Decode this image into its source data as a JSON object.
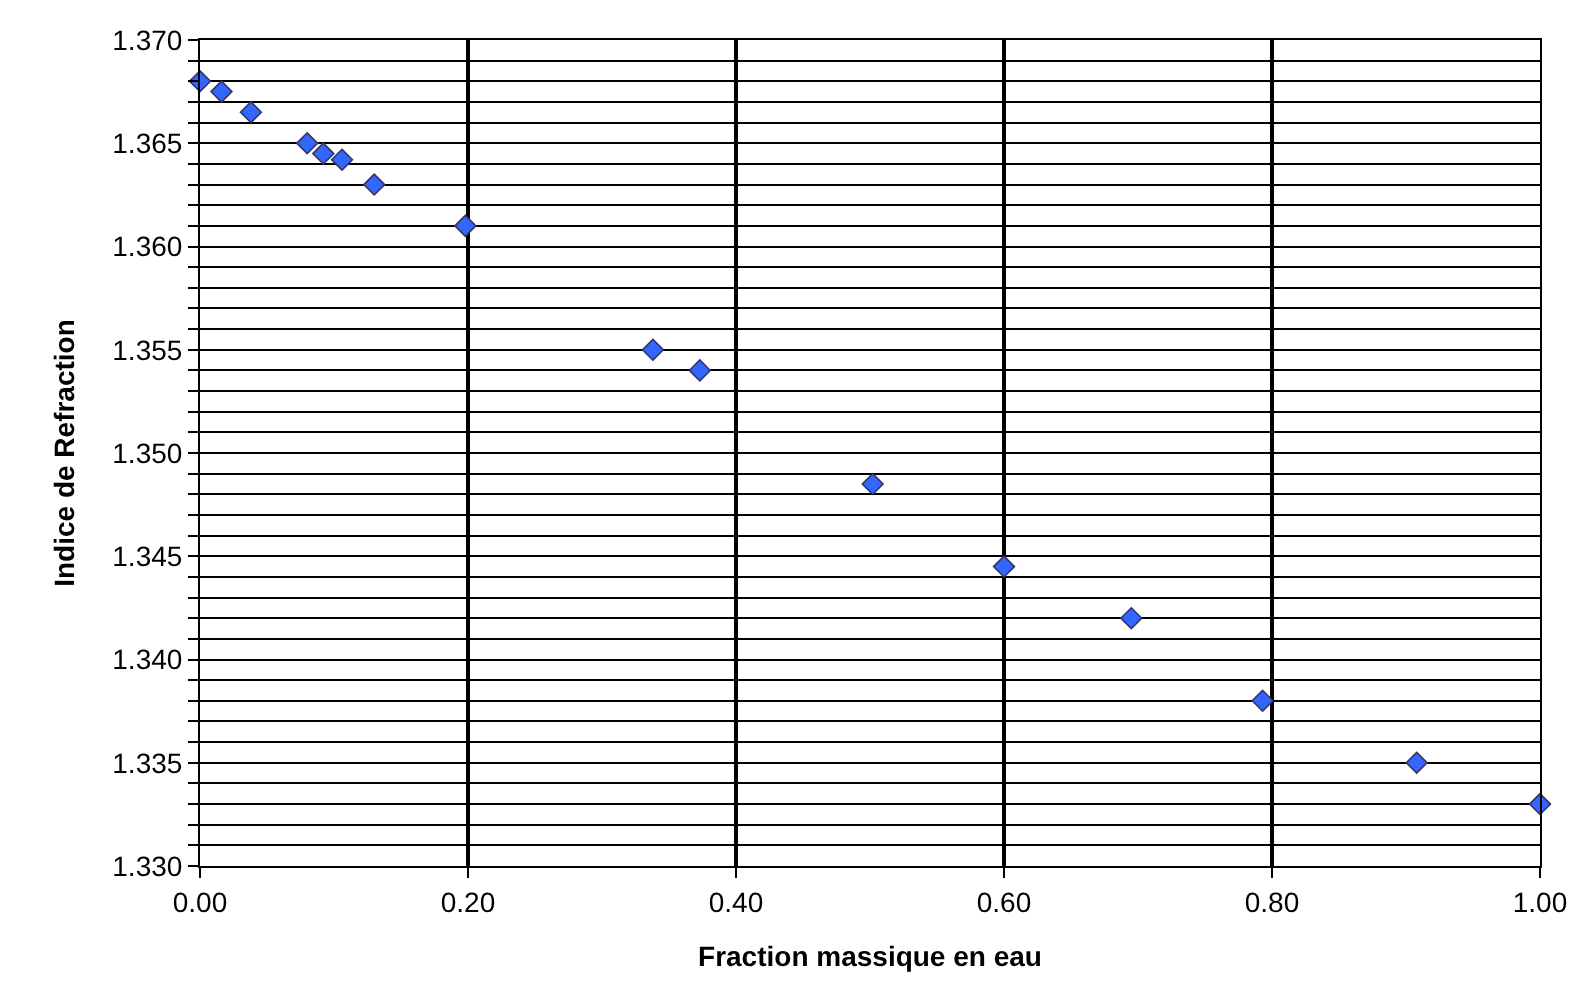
{
  "chart_data": {
    "type": "scatter",
    "xlabel": "Fraction massique en eau",
    "ylabel": "Indice de Refraction",
    "x": [
      0,
      0.016,
      0.038,
      0.08,
      0.092,
      0.106,
      0.13,
      0.198,
      0.338,
      0.373,
      0.502,
      0.6,
      0.695,
      0.793,
      0.908,
      1.0
    ],
    "series": [
      {
        "color": "#3366ff",
        "values": [
          1.368,
          1.3675,
          1.3665,
          1.365,
          1.3645,
          1.3642,
          1.363,
          1.361,
          1.355,
          1.354,
          1.3485,
          1.3445,
          1.342,
          1.338,
          1.335,
          1.333
        ]
      }
    ],
    "marker": "diamond",
    "grid": true,
    "xlim": [
      0,
      1
    ],
    "ylim": [
      1.33,
      1.37
    ],
    "xticks": [
      {
        "value": 0,
        "label": "0.00"
      },
      {
        "value": 0.2,
        "label": "0.20"
      },
      {
        "value": 0.4,
        "label": "0.40"
      },
      {
        "value": 0.6,
        "label": "0.60"
      },
      {
        "value": 0.8,
        "label": "0.80"
      },
      {
        "value": 1,
        "label": "1.00"
      }
    ],
    "yticks": [
      {
        "value": 1.33,
        "label": "1.330"
      },
      {
        "value": 1.331,
        "label": null
      },
      {
        "value": 1.332,
        "label": null
      },
      {
        "value": 1.333,
        "label": null
      },
      {
        "value": 1.334,
        "label": null
      },
      {
        "value": 1.335,
        "label": "1.335"
      },
      {
        "value": 1.336,
        "label": null
      },
      {
        "value": 1.337,
        "label": null
      },
      {
        "value": 1.338,
        "label": null
      },
      {
        "value": 1.339,
        "label": null
      },
      {
        "value": 1.34,
        "label": "1.340"
      },
      {
        "value": 1.341,
        "label": null
      },
      {
        "value": 1.342,
        "label": null
      },
      {
        "value": 1.343,
        "label": null
      },
      {
        "value": 1.344,
        "label": null
      },
      {
        "value": 1.345,
        "label": "1.345"
      },
      {
        "value": 1.346,
        "label": null
      },
      {
        "value": 1.347,
        "label": null
      },
      {
        "value": 1.348,
        "label": null
      },
      {
        "value": 1.349,
        "label": null
      },
      {
        "value": 1.35,
        "label": "1.350"
      },
      {
        "value": 1.351,
        "label": null
      },
      {
        "value": 1.352,
        "label": null
      },
      {
        "value": 1.353,
        "label": null
      },
      {
        "value": 1.354,
        "label": null
      },
      {
        "value": 1.355,
        "label": "1.355"
      },
      {
        "value": 1.356,
        "label": null
      },
      {
        "value": 1.357,
        "label": null
      },
      {
        "value": 1.358,
        "label": null
      },
      {
        "value": 1.359,
        "label": null
      },
      {
        "value": 1.36,
        "label": "1.360"
      },
      {
        "value": 1.361,
        "label": null
      },
      {
        "value": 1.362,
        "label": null
      },
      {
        "value": 1.363,
        "label": null
      },
      {
        "value": 1.364,
        "label": null
      },
      {
        "value": 1.365,
        "label": "1.365"
      },
      {
        "value": 1.366,
        "label": null
      },
      {
        "value": 1.367,
        "label": null
      },
      {
        "value": 1.368,
        "label": null
      },
      {
        "value": 1.369,
        "label": null
      },
      {
        "value": 1.37,
        "label": "1.370"
      }
    ]
  }
}
